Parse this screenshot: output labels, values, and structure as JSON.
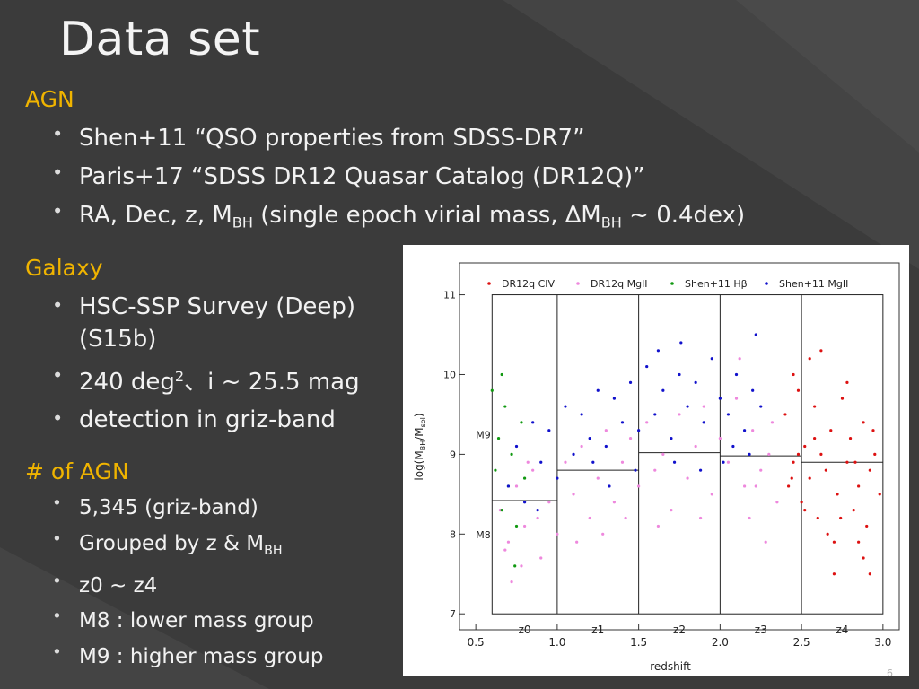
{
  "slide": {
    "title": "Data set",
    "page_number": "6",
    "accent_color": "#f0b400",
    "background_color": "#3b3b3b"
  },
  "agn": {
    "heading": "AGN",
    "items": [
      "Shen+11 “QSO properties from SDSS-DR7”",
      "Paris+17 “SDSS DR12 Quasar Catalog (DR12Q)”"
    ],
    "item3": {
      "pre": "RA, Dec, z, M",
      "sub1": "BH",
      "mid": " (single epoch virial mass, ∆M",
      "sub2": "BH",
      "post": " ~ 0.4dex)"
    }
  },
  "galaxy": {
    "heading": "Galaxy",
    "item1_line1": "HSC-SSP Survey (Deep)",
    "item1_line2": "(S15b)",
    "item2_pre": "240 deg",
    "item2_sup": "2",
    "item2_post": "、i ~ 25.5 mag",
    "item3": "detection in griz-band"
  },
  "num_agn": {
    "heading": "# of AGN",
    "item1": "5,345 (griz-band)",
    "item2_pre": "Grouped by z & M",
    "item2_sub": "BH",
    "item3": "z0 ~ z4",
    "item4": "M8 : lower mass group",
    "item5": "M9 : higher mass group"
  },
  "chart_data": {
    "type": "scatter",
    "xlabel": "redshift",
    "ylabel_main": "log(M",
    "ylabel_sub1": "BH",
    "ylabel_mid": "/M",
    "ylabel_sub2": "sol",
    "ylabel_end": ")",
    "xlim": [
      0.4,
      3.1
    ],
    "ylim": [
      6.8,
      11.4
    ],
    "plot_xlim": [
      0.6,
      3.0
    ],
    "plot_ylim": [
      7.0,
      11.0
    ],
    "xticks": [
      0.5,
      1.0,
      1.5,
      2.0,
      2.5,
      3.0
    ],
    "xtick_labels": [
      "0.5",
      "1.0",
      "1.5",
      "2.0",
      "2.5",
      "3.0"
    ],
    "yticks": [
      7,
      8,
      9,
      10,
      11
    ],
    "ytick_labels": [
      "7",
      "8",
      "9",
      "10",
      "11"
    ],
    "z_bin_edges": [
      0.6,
      1.0,
      1.5,
      2.0,
      2.5,
      3.0
    ],
    "z_bin_labels": [
      "z0",
      "z1",
      "z2",
      "z3",
      "z4"
    ],
    "mass_split": [
      8.42,
      8.8,
      9.02,
      8.98,
      8.9
    ],
    "mass_labels": [
      "M9",
      "M8"
    ],
    "legend": [
      {
        "name": "DR12q CIV",
        "color": "#dd1111"
      },
      {
        "name": "DR12q MgII",
        "color": "#ee88dd"
      },
      {
        "name": "Shen+11 Hβ",
        "color": "#119911"
      },
      {
        "name": "Shen+11 MgII",
        "color": "#1111cc"
      }
    ],
    "series": [
      {
        "name": "DR12q CIV",
        "color": "#dd1111",
        "points": [
          [
            2.4,
            9.5
          ],
          [
            2.42,
            8.6
          ],
          [
            2.45,
            8.9
          ],
          [
            2.48,
            9.8
          ],
          [
            2.5,
            8.4
          ],
          [
            2.52,
            9.1
          ],
          [
            2.55,
            8.7
          ],
          [
            2.58,
            9.6
          ],
          [
            2.6,
            8.2
          ],
          [
            2.62,
            9.0
          ],
          [
            2.65,
            8.8
          ],
          [
            2.68,
            9.3
          ],
          [
            2.7,
            7.9
          ],
          [
            2.72,
            8.5
          ],
          [
            2.75,
            9.7
          ],
          [
            2.78,
            8.9
          ],
          [
            2.8,
            9.2
          ],
          [
            2.82,
            8.3
          ],
          [
            2.85,
            8.6
          ],
          [
            2.88,
            9.4
          ],
          [
            2.9,
            8.1
          ],
          [
            2.92,
            8.8
          ],
          [
            2.95,
            9.0
          ],
          [
            2.98,
            8.5
          ],
          [
            2.55,
            10.2
          ],
          [
            2.62,
            10.3
          ],
          [
            2.7,
            7.5
          ],
          [
            2.88,
            7.7
          ],
          [
            2.45,
            10.0
          ],
          [
            2.78,
            9.9
          ],
          [
            2.66,
            8.0
          ],
          [
            2.85,
            7.9
          ],
          [
            2.52,
            8.3
          ],
          [
            2.74,
            8.2
          ],
          [
            2.94,
            9.3
          ],
          [
            2.58,
            9.2
          ],
          [
            2.44,
            8.7
          ],
          [
            2.92,
            7.5
          ],
          [
            2.48,
            9.0
          ],
          [
            2.83,
            8.9
          ]
        ]
      },
      {
        "name": "DR12q MgII",
        "color": "#ee88dd",
        "points": [
          [
            0.65,
            8.3
          ],
          [
            0.7,
            7.9
          ],
          [
            0.75,
            8.6
          ],
          [
            0.8,
            8.1
          ],
          [
            0.85,
            8.8
          ],
          [
            0.9,
            7.7
          ],
          [
            0.95,
            8.4
          ],
          [
            1.0,
            8.0
          ],
          [
            1.05,
            8.9
          ],
          [
            1.1,
            8.5
          ],
          [
            1.15,
            9.1
          ],
          [
            1.2,
            8.2
          ],
          [
            1.25,
            8.7
          ],
          [
            1.3,
            9.3
          ],
          [
            1.35,
            8.4
          ],
          [
            1.4,
            8.9
          ],
          [
            1.45,
            9.2
          ],
          [
            1.5,
            8.6
          ],
          [
            1.55,
            9.4
          ],
          [
            1.6,
            8.8
          ],
          [
            1.65,
            9.0
          ],
          [
            1.7,
            8.3
          ],
          [
            1.75,
            9.5
          ],
          [
            1.8,
            8.7
          ],
          [
            1.85,
            9.1
          ],
          [
            1.9,
            9.6
          ],
          [
            1.95,
            8.5
          ],
          [
            2.0,
            9.2
          ],
          [
            2.05,
            8.9
          ],
          [
            2.1,
            9.7
          ],
          [
            2.15,
            8.6
          ],
          [
            2.2,
            9.3
          ],
          [
            2.25,
            8.8
          ],
          [
            2.3,
            9.0
          ],
          [
            2.35,
            8.4
          ],
          [
            0.72,
            7.4
          ],
          [
            0.78,
            7.6
          ],
          [
            0.82,
            8.9
          ],
          [
            1.12,
            7.9
          ],
          [
            1.28,
            8.0
          ],
          [
            1.62,
            8.1
          ],
          [
            1.88,
            8.2
          ],
          [
            2.12,
            10.2
          ],
          [
            2.28,
            7.9
          ],
          [
            2.18,
            8.2
          ],
          [
            0.68,
            7.8
          ],
          [
            0.88,
            8.2
          ],
          [
            1.42,
            8.2
          ],
          [
            2.32,
            9.4
          ],
          [
            2.22,
            8.6
          ]
        ]
      },
      {
        "name": "Shen+11 Hβ",
        "color": "#119911",
        "points": [
          [
            0.62,
            8.8
          ],
          [
            0.64,
            9.2
          ],
          [
            0.66,
            8.3
          ],
          [
            0.68,
            9.6
          ],
          [
            0.7,
            8.6
          ],
          [
            0.72,
            9.0
          ],
          [
            0.75,
            8.1
          ],
          [
            0.78,
            9.4
          ],
          [
            0.8,
            8.7
          ],
          [
            0.6,
            9.8
          ],
          [
            0.66,
            10.0
          ],
          [
            0.74,
            7.6
          ]
        ]
      },
      {
        "name": "Shen+11 MgII",
        "color": "#1111cc",
        "points": [
          [
            0.7,
            8.6
          ],
          [
            0.75,
            9.1
          ],
          [
            0.8,
            8.4
          ],
          [
            0.85,
            9.4
          ],
          [
            0.9,
            8.9
          ],
          [
            0.95,
            9.3
          ],
          [
            1.0,
            8.7
          ],
          [
            1.05,
            9.6
          ],
          [
            1.1,
            9.0
          ],
          [
            1.15,
            9.5
          ],
          [
            1.2,
            9.2
          ],
          [
            1.25,
            9.8
          ],
          [
            1.3,
            9.1
          ],
          [
            1.35,
            9.7
          ],
          [
            1.4,
            9.4
          ],
          [
            1.45,
            9.9
          ],
          [
            1.5,
            9.3
          ],
          [
            1.55,
            10.1
          ],
          [
            1.6,
            9.5
          ],
          [
            1.65,
            9.8
          ],
          [
            1.7,
            9.2
          ],
          [
            1.75,
            10.0
          ],
          [
            1.8,
            9.6
          ],
          [
            1.85,
            9.9
          ],
          [
            1.9,
            9.4
          ],
          [
            1.95,
            10.2
          ],
          [
            2.0,
            9.7
          ],
          [
            2.05,
            9.5
          ],
          [
            2.1,
            10.0
          ],
          [
            2.15,
            9.3
          ],
          [
            2.2,
            9.8
          ],
          [
            2.25,
            9.6
          ],
          [
            1.22,
            8.9
          ],
          [
            1.48,
            8.8
          ],
          [
            1.72,
            8.9
          ],
          [
            1.88,
            8.8
          ],
          [
            2.02,
            8.9
          ],
          [
            2.18,
            9.0
          ],
          [
            1.76,
            10.4
          ],
          [
            2.22,
            10.5
          ],
          [
            0.88,
            8.3
          ],
          [
            1.32,
            8.6
          ],
          [
            1.62,
            10.3
          ],
          [
            2.08,
            9.1
          ]
        ]
      }
    ]
  }
}
